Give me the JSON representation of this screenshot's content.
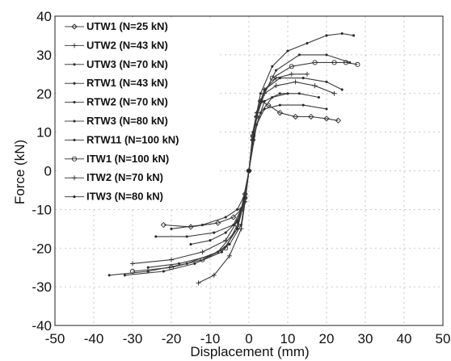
{
  "chart_data": {
    "type": "line",
    "title": "",
    "xlabel": "Displacement (mm)",
    "ylabel": "Force (kN)",
    "xlim": [
      -50,
      50
    ],
    "ylim": [
      -40,
      40
    ],
    "xticks": [
      -50,
      -40,
      -30,
      -20,
      -10,
      0,
      10,
      20,
      30,
      40,
      50
    ],
    "yticks": [
      -40,
      -30,
      -20,
      -10,
      0,
      10,
      20,
      30,
      40
    ],
    "grid": true,
    "legend_position": "top-left",
    "series": [
      {
        "name": "UTW1 (N=25 kN)",
        "marker": "diamond",
        "x": [
          -22,
          -15,
          -8,
          -4,
          -2,
          -1,
          0,
          1,
          2,
          3,
          5,
          8,
          12,
          16,
          20,
          23
        ],
        "y": [
          -14,
          -14.5,
          -13.5,
          -12,
          -10,
          -6,
          0,
          8,
          14,
          18,
          17,
          15,
          14,
          14,
          13.5,
          13
        ]
      },
      {
        "name": "UTW2 (N=43 kN)",
        "marker": "plus",
        "x": [
          -30,
          -20,
          -12,
          -6,
          -3,
          -1,
          0,
          1,
          2,
          4,
          7,
          12,
          17,
          22
        ],
        "y": [
          -24,
          -23,
          -21,
          -18,
          -13,
          -7,
          0,
          8,
          14,
          20,
          22,
          23,
          22,
          20
        ]
      },
      {
        "name": "UTW3 (N=70 kN)",
        "marker": "dot",
        "x": [
          -26,
          -18,
          -10,
          -5,
          -2,
          -1,
          0,
          1,
          2,
          4,
          8,
          14,
          20,
          24
        ],
        "y": [
          -25,
          -24,
          -22,
          -19,
          -14,
          -7,
          0,
          9,
          15,
          21,
          24,
          24,
          23,
          21
        ]
      },
      {
        "name": "RTW1 (N=43 kN)",
        "marker": "dot",
        "x": [
          -20,
          -12,
          -6,
          -3,
          -1,
          0,
          1,
          2,
          4,
          8,
          14,
          20
        ],
        "y": [
          -15,
          -14,
          -12,
          -10,
          -6,
          0,
          7,
          12,
          16,
          17,
          17,
          16
        ]
      },
      {
        "name": "RTW2 (N=70 kN)",
        "marker": "dot",
        "x": [
          -24,
          -16,
          -9,
          -4,
          -2,
          0,
          2,
          4,
          8,
          13,
          18
        ],
        "y": [
          -17,
          -17,
          -16,
          -14,
          -10,
          0,
          12,
          18,
          20,
          20,
          19
        ]
      },
      {
        "name": "RTW3 (N=80 kN)",
        "marker": "dot",
        "x": [
          -15,
          -10,
          -6,
          -3,
          -1,
          0,
          1,
          3,
          6,
          10
        ],
        "y": [
          -19,
          -18,
          -16,
          -13,
          -8,
          0,
          8,
          15,
          19,
          20
        ]
      },
      {
        "name": "RTW11 (N=100 kN)",
        "marker": "dot",
        "x": [
          -36,
          -26,
          -16,
          -8,
          -3,
          -1,
          0,
          1,
          3,
          7,
          13,
          20,
          26
        ],
        "y": [
          -27,
          -26,
          -24,
          -21,
          -15,
          -7,
          0,
          9,
          18,
          26,
          30,
          30,
          28
        ]
      },
      {
        "name": "ITW1 (N=100 kN)",
        "marker": "circle",
        "x": [
          -30,
          -20,
          -12,
          -6,
          -3,
          -1,
          0,
          1,
          3,
          6,
          11,
          17,
          22,
          25,
          28
        ],
        "y": [
          -26,
          -25,
          -23,
          -20,
          -14,
          -7,
          0,
          9,
          18,
          24,
          27,
          28,
          28,
          28,
          27.5
        ]
      },
      {
        "name": "ITW2 (N=70 kN)",
        "marker": "plus",
        "x": [
          -13,
          -9,
          -5,
          -2,
          -1,
          0,
          1,
          2,
          4,
          7,
          11,
          15
        ],
        "y": [
          -29,
          -27,
          -22,
          -15,
          -8,
          0,
          9,
          15,
          21,
          24,
          25,
          25
        ]
      },
      {
        "name": "ITW3 (N=80 kN)",
        "marker": "dot",
        "x": [
          -32,
          -22,
          -14,
          -7,
          -3,
          -1,
          0,
          1,
          3,
          6,
          10,
          15,
          20,
          24,
          27
        ],
        "y": [
          -27,
          -26,
          -24,
          -21,
          -15,
          -7,
          0,
          10,
          20,
          27,
          31,
          33,
          35,
          35.5,
          35
        ]
      }
    ]
  }
}
